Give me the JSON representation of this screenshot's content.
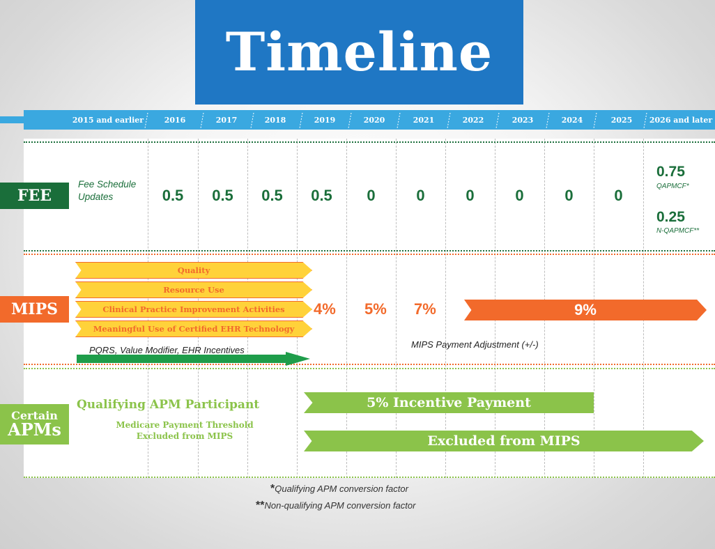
{
  "title": "Timeline",
  "years": [
    "2015 and earlier",
    "2016",
    "2017",
    "2018",
    "2019",
    "2020",
    "2021",
    "2022",
    "2023",
    "2024",
    "2025",
    "2026 and later"
  ],
  "fee": {
    "label": "FEE",
    "description": "Fee Schedule Updates",
    "values": [
      "0.5",
      "0.5",
      "0.5",
      "0.5",
      "0",
      "0",
      "0",
      "0",
      "0",
      "0"
    ],
    "later_qapm_value": "0.75",
    "later_qapm_label": "QAPMCF*",
    "later_nqapm_value": "0.25",
    "later_nqapm_label": "N-QAPMCF**"
  },
  "mips": {
    "label": "MIPS",
    "components": [
      "Quality",
      "Resource Use",
      "Clinical Practice Improvement Activities",
      "Meaningful Use of Certified EHR Technology"
    ],
    "legacy_programs": "PQRS, Value Modifier, EHR Incentives",
    "adjustments": [
      "4%",
      "5%",
      "7%"
    ],
    "max_adjustment": "9%",
    "adjustment_note": "MIPS Payment Adjustment (+/-)"
  },
  "apm": {
    "label_line1": "Certain",
    "label_line2": "APMs",
    "heading": "Qualifying APM Participant",
    "sub_line1": "Medicare Payment Threshold",
    "sub_line2": "Excluded from MIPS",
    "incentive": "5% Incentive Payment",
    "excluded": "Excluded from MIPS"
  },
  "footnotes": {
    "q_mark": "*",
    "q_text": "Qualifying APM conversion factor",
    "nq_mark": "**",
    "nq_text": "Non-qualifying APM conversion factor"
  },
  "colors": {
    "title_blue": "#1f77c4",
    "year_bar_blue": "#3aa8e0",
    "fee_green": "#1a6e3a",
    "mips_orange": "#f26a2b",
    "mips_yellow": "#ffd23a",
    "apm_green": "#8bc34a"
  }
}
